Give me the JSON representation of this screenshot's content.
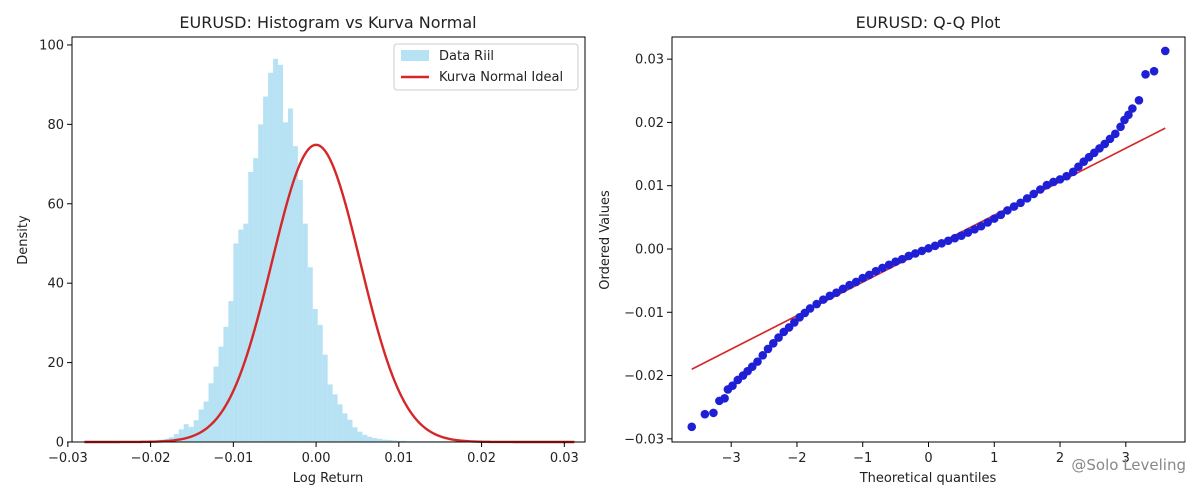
{
  "watermark": "@Solo Leveling",
  "chart_data": [
    {
      "type": "bar",
      "subtype": "histogram-with-normal-curve",
      "title": "EURUSD: Histogram vs Kurva Normal",
      "xlabel": "Log Return",
      "ylabel": "Density",
      "xlim": [
        -0.0295,
        0.0325
      ],
      "ylim": [
        0,
        102
      ],
      "xticks": [
        -0.03,
        -0.02,
        -0.01,
        0.0,
        0.01,
        0.02,
        0.03
      ],
      "xtick_labels": [
        "−0.03",
        "−0.02",
        "−0.01",
        "0.00",
        "0.01",
        "0.02",
        "0.03"
      ],
      "yticks": [
        0,
        20,
        40,
        60,
        80,
        100
      ],
      "ytick_labels": [
        "0",
        "20",
        "40",
        "60",
        "80",
        "100"
      ],
      "legend": {
        "placement": "top-right",
        "entries": [
          "Data Riil",
          "Kurva Normal Ideal"
        ]
      },
      "histogram": {
        "name": "Data Riil",
        "color": "#87ceeb",
        "bin_start": -0.028,
        "bin_width": 0.0006,
        "values": [
          0.2,
          0.2,
          0.2,
          0.2,
          0.2,
          0.2,
          0.2,
          0.2,
          0.2,
          0.2,
          0.2,
          0.2,
          0.3,
          0.3,
          0.4,
          0.6,
          0.8,
          1.2,
          2.0,
          3.2,
          4.5,
          3.8,
          5.5,
          8.2,
          10.2,
          14.8,
          19.0,
          24.0,
          29.0,
          35.5,
          50.0,
          53.5,
          55.0,
          68.0,
          71.5,
          80.0,
          87.0,
          93.0,
          96.5,
          95.0,
          80.5,
          84.0,
          74.5,
          66.0,
          55.0,
          44.0,
          33.5,
          29.5,
          22.0,
          14.5,
          12.0,
          9.5,
          7.2,
          5.6,
          3.7,
          2.6,
          1.8,
          1.3,
          1.0,
          0.8,
          0.6,
          0.5,
          0.4,
          0.3,
          0.3,
          0.2,
          0.2,
          0.2,
          0.2,
          0.2,
          0.2,
          0.2,
          0.2,
          0.2,
          0.2,
          0.2,
          0.2,
          0.2,
          0.2,
          0.2,
          0.2,
          0.2,
          0.2,
          0.2,
          0.2,
          0.2,
          0.2,
          0.2,
          0.2,
          0.2,
          0.2,
          0.2,
          0.2,
          0.2,
          0.2,
          0.2,
          0.2,
          0.2,
          0.2
        ]
      },
      "normal_curve": {
        "name": "Kurva Normal Ideal",
        "color": "#d62728",
        "mean": 0.0,
        "std": 0.00533,
        "x_range": [
          -0.028,
          0.0312
        ]
      }
    },
    {
      "type": "scatter",
      "subtype": "qq-plot",
      "title": "EURUSD: Q-Q Plot",
      "xlabel": "Theoretical quantiles",
      "ylabel": "Ordered Values",
      "xlim": [
        -3.9,
        3.9
      ],
      "ylim": [
        -0.0305,
        0.0335
      ],
      "xticks": [
        -3,
        -2,
        -1,
        0,
        1,
        2,
        3
      ],
      "xtick_labels": [
        "−3",
        "−2",
        "−1",
        "0",
        "1",
        "2",
        "3"
      ],
      "yticks": [
        -0.03,
        -0.02,
        -0.01,
        0.0,
        0.01,
        0.02,
        0.03
      ],
      "ytick_labels": [
        "−0.03",
        "−0.02",
        "−0.01",
        "0.00",
        "0.01",
        "0.02",
        "0.03"
      ],
      "points_color": "#1f1fd6",
      "points": [
        [
          -3.6,
          -0.0281
        ],
        [
          -3.4,
          -0.0261
        ],
        [
          -3.27,
          -0.0259
        ],
        [
          -3.18,
          -0.024
        ],
        [
          -3.1,
          -0.0236
        ],
        [
          -3.05,
          -0.0222
        ],
        [
          -2.98,
          -0.0216
        ],
        [
          -2.9,
          -0.0207
        ],
        [
          -2.82,
          -0.02
        ],
        [
          -2.75,
          -0.0193
        ],
        [
          -2.68,
          -0.0186
        ],
        [
          -2.6,
          -0.0178
        ],
        [
          -2.52,
          -0.0168
        ],
        [
          -2.44,
          -0.0158
        ],
        [
          -2.36,
          -0.0149
        ],
        [
          -2.28,
          -0.014
        ],
        [
          -2.2,
          -0.0131
        ],
        [
          -2.12,
          -0.0124
        ],
        [
          -2.04,
          -0.0116
        ],
        [
          -1.96,
          -0.0108
        ],
        [
          -1.88,
          -0.0101
        ],
        [
          -1.8,
          -0.0094
        ],
        [
          -1.7,
          -0.0087
        ],
        [
          -1.6,
          -0.008
        ],
        [
          -1.5,
          -0.0074
        ],
        [
          -1.4,
          -0.0069
        ],
        [
          -1.3,
          -0.0063
        ],
        [
          -1.2,
          -0.0057
        ],
        [
          -1.1,
          -0.0052
        ],
        [
          -1.0,
          -0.0046
        ],
        [
          -0.9,
          -0.0041
        ],
        [
          -0.8,
          -0.0035
        ],
        [
          -0.7,
          -0.003
        ],
        [
          -0.6,
          -0.0025
        ],
        [
          -0.5,
          -0.002
        ],
        [
          -0.4,
          -0.0016
        ],
        [
          -0.3,
          -0.0011
        ],
        [
          -0.2,
          -0.0007
        ],
        [
          -0.1,
          -0.0003
        ],
        [
          0.0,
          0.0001
        ],
        [
          0.1,
          0.0005
        ],
        [
          0.2,
          0.0009
        ],
        [
          0.3,
          0.0013
        ],
        [
          0.4,
          0.0017
        ],
        [
          0.5,
          0.0021
        ],
        [
          0.6,
          0.0026
        ],
        [
          0.7,
          0.0031
        ],
        [
          0.8,
          0.0036
        ],
        [
          0.9,
          0.0042
        ],
        [
          1.0,
          0.0048
        ],
        [
          1.1,
          0.0054
        ],
        [
          1.2,
          0.0061
        ],
        [
          1.3,
          0.0067
        ],
        [
          1.4,
          0.0073
        ],
        [
          1.5,
          0.008
        ],
        [
          1.6,
          0.0087
        ],
        [
          1.7,
          0.0094
        ],
        [
          1.8,
          0.0101
        ],
        [
          1.9,
          0.0106
        ],
        [
          2.0,
          0.011
        ],
        [
          2.1,
          0.0115
        ],
        [
          2.2,
          0.0122
        ],
        [
          2.28,
          0.013
        ],
        [
          2.36,
          0.0138
        ],
        [
          2.44,
          0.0145
        ],
        [
          2.52,
          0.0152
        ],
        [
          2.6,
          0.0159
        ],
        [
          2.68,
          0.0166
        ],
        [
          2.76,
          0.0174
        ],
        [
          2.84,
          0.0182
        ],
        [
          2.92,
          0.0193
        ],
        [
          2.98,
          0.0204
        ],
        [
          3.04,
          0.0212
        ],
        [
          3.1,
          0.0222
        ],
        [
          3.2,
          0.0235
        ],
        [
          3.3,
          0.0276
        ],
        [
          3.43,
          0.0281
        ],
        [
          3.6,
          0.0313
        ]
      ],
      "reference_line": {
        "color": "#d62728",
        "x": [
          -3.6,
          3.6
        ],
        "y": [
          -0.019,
          0.0191
        ]
      }
    }
  ]
}
